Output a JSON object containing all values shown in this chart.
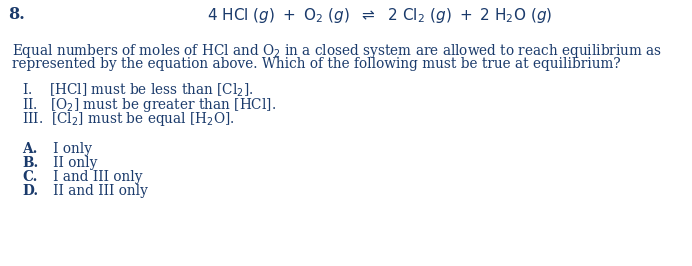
{
  "question_number": "8.",
  "text_color": "#1a3a6b",
  "bg_color": "#ffffff",
  "eq_fs": 11.0,
  "body_fs": 9.8,
  "qnum_fs": 11.5,
  "body1": "Equal numbers of moles of HCl and O₂ in a closed system are allowed to reach equilibrium as",
  "body2": "represented by the equation above. Which of the following must be true at equilibrium?",
  "roman_I": "I.    [HCl] must be less than [Cl₂].",
  "roman_II": "II.   [O₂] must be greater than [HCl].",
  "roman_III": "III.  [Cl₂] must be equal [H₂O].",
  "choice_A_bold": "A.",
  "choice_A_rest": "  I only",
  "choice_B_bold": "B.",
  "choice_B_rest": "  II only",
  "choice_C_bold": "C.",
  "choice_C_rest": "  I and III only",
  "choice_D_bold": "D.",
  "choice_D_rest": "  II and III only"
}
